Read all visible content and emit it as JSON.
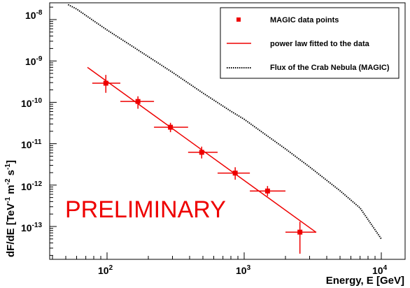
{
  "chart_data": {
    "type": "scatter",
    "xlabel": "Energy, E [GeV]",
    "ylabel": {
      "prefix": "dF/dE [TeV",
      "exp1": "-1",
      "mid": " m",
      "exp2": "-2",
      "mid2": " s",
      "exp3": "-1",
      "suffix": "]"
    },
    "x_scale": "log",
    "y_scale": "log",
    "xlim": [
      40,
      14000
    ],
    "ylim": [
      4e-14,
      4e-08
    ],
    "grid": false,
    "legend_position": "top-right",
    "x_ticks": [
      {
        "base": "10",
        "exp": "2",
        "value": 100
      },
      {
        "base": "10",
        "exp": "3",
        "value": 1000
      },
      {
        "base": "10",
        "exp": "4",
        "value": 10000
      }
    ],
    "y_ticks": [
      {
        "base": "10",
        "exp": "-8",
        "value": 1e-08
      },
      {
        "base": "10",
        "exp": "-9",
        "value": 1e-09
      },
      {
        "base": "10",
        "exp": "-10",
        "value": 1e-10
      },
      {
        "base": "10",
        "exp": "-11",
        "value": 1e-11
      },
      {
        "base": "10",
        "exp": "-12",
        "value": 1e-12
      },
      {
        "base": "10",
        "exp": "-13",
        "value": 1e-13
      }
    ],
    "series": [
      {
        "name": "MAGIC data points",
        "kind": "points",
        "color": "#ee0000",
        "points": [
          {
            "x": 98,
            "y": 2.9e-10,
            "xerr": [
              78,
              125
            ],
            "yerr": [
              1.7e-10,
              4.6e-10
            ]
          },
          {
            "x": 168,
            "y": 1.05e-10,
            "xerr": [
              125,
              220
            ],
            "yerr": [
              7e-11,
              1.4e-10
            ]
          },
          {
            "x": 290,
            "y": 2.5e-11,
            "xerr": [
              220,
              390
            ],
            "yerr": [
              1.9e-11,
              3.2e-11
            ]
          },
          {
            "x": 490,
            "y": 6.2e-12,
            "xerr": [
              390,
              640
            ],
            "yerr": [
              4.4e-12,
              8.5e-12
            ]
          },
          {
            "x": 860,
            "y": 1.95e-12,
            "xerr": [
              640,
              1100
            ],
            "yerr": [
              1.35e-12,
              2.7e-12
            ]
          },
          {
            "x": 1480,
            "y": 7.2e-13,
            "xerr": [
              1100,
              2000
            ],
            "yerr": [
              5.4e-13,
              9.5e-13
            ]
          },
          {
            "x": 2550,
            "y": 7.3e-14,
            "xerr": [
              2000,
              3350
            ],
            "yerr": [
              2.2e-14,
              1.3e-13
            ]
          }
        ]
      },
      {
        "name": "power law fitted to the data",
        "kind": "line",
        "color": "#ee0000",
        "x": [
          72,
          3350
        ],
        "y": [
          7e-10,
          7.2e-14
        ]
      },
      {
        "name": "Flux of the Crab Nebula (MAGIC)",
        "kind": "dotted",
        "color": "#000000",
        "x": [
          52,
          60,
          80,
          100,
          150,
          200,
          300,
          500,
          800,
          1000,
          1500,
          2000,
          3000,
          5000,
          7000,
          10000
        ],
        "y": [
          2.3e-08,
          1.8e-08,
          9.3e-09,
          5.6e-09,
          2.35e-09,
          1.27e-09,
          5.3e-10,
          1.68e-10,
          6.1e-11,
          3.9e-11,
          1.48e-11,
          7.5e-12,
          2.75e-12,
          7.3e-13,
          2.8e-13,
          5e-14
        ]
      }
    ],
    "annotation": "PRELIMINARY",
    "annotation_color": "#ee0000"
  }
}
